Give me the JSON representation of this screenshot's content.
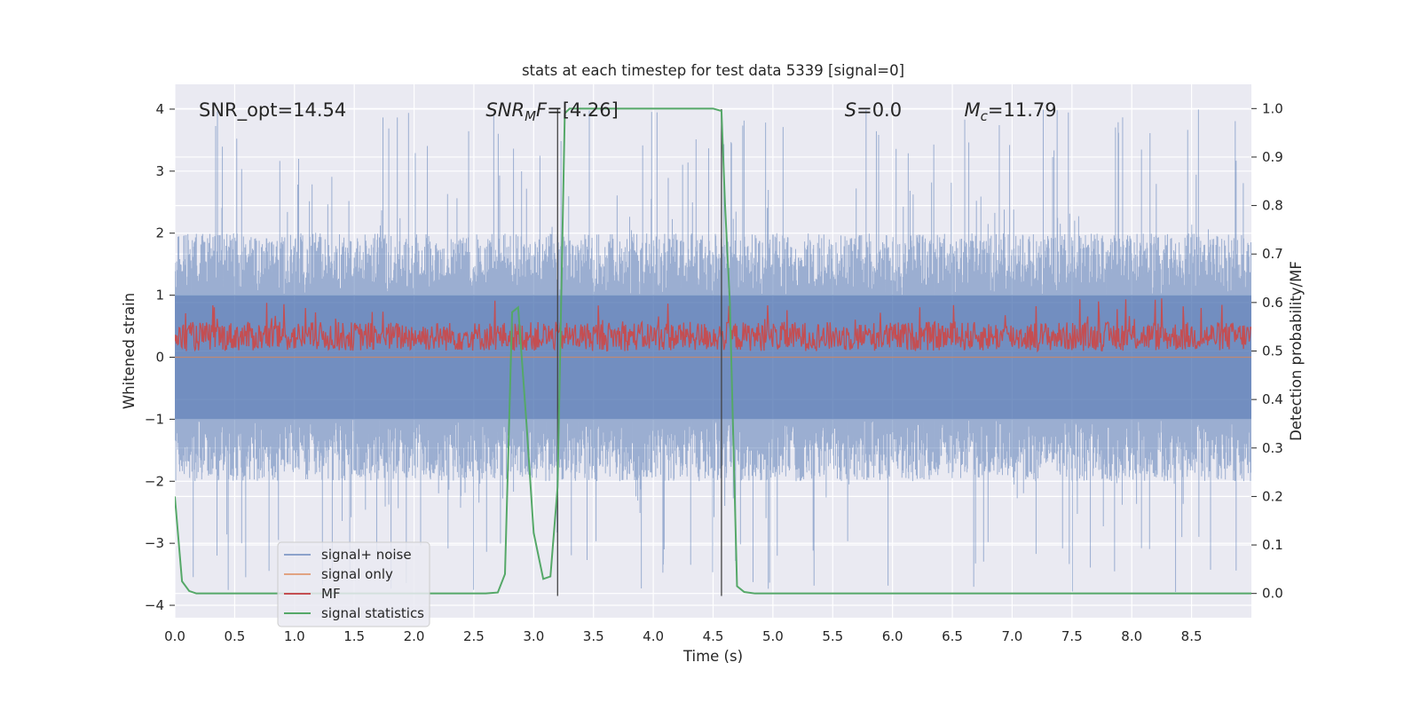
{
  "chart_data": {
    "type": "line",
    "title": "stats at each timestep for test data 5339 [signal=0]",
    "xlabel": "Time (s)",
    "ylabel": "Whitened strain",
    "y2label": "Detection probability/MF",
    "xlim": [
      0.0,
      9.0
    ],
    "ylim": [
      -4.2,
      4.4
    ],
    "y2lim": [
      -0.05,
      1.05
    ],
    "xticks": [
      0.0,
      0.5,
      1.0,
      1.5,
      2.0,
      2.5,
      3.0,
      3.5,
      4.0,
      4.5,
      5.0,
      5.5,
      6.0,
      6.5,
      7.0,
      7.5,
      8.0,
      8.5
    ],
    "xtick_labels": [
      "0.0",
      "0.5",
      "1.0",
      "1.5",
      "2.0",
      "2.5",
      "3.0",
      "3.5",
      "4.0",
      "4.5",
      "5.0",
      "5.5",
      "6.0",
      "6.5",
      "7.0",
      "7.5",
      "8.0",
      "8.5"
    ],
    "yticks": [
      -4,
      -3,
      -2,
      -1,
      0,
      1,
      2,
      3,
      4
    ],
    "ytick_labels": [
      "−4",
      "−3",
      "−2",
      "−1",
      "0",
      "1",
      "2",
      "3",
      "4"
    ],
    "y2ticks": [
      0.0,
      0.1,
      0.2,
      0.3,
      0.4,
      0.5,
      0.6,
      0.7,
      0.8,
      0.9,
      1.0
    ],
    "y2tick_labels": [
      "0.0",
      "0.1",
      "0.2",
      "0.3",
      "0.4",
      "0.5",
      "0.6",
      "0.7",
      "0.8",
      "0.9",
      "1.0"
    ],
    "grid": true,
    "legend_position": "lower-left",
    "annotations": [
      {
        "kind": "plain",
        "text": "SNR_opt=14.54",
        "x": 0.2
      },
      {
        "kind": "snrmf",
        "base": "SNR",
        "sub": "M",
        "rest": "F=[4.26]",
        "x": 2.6
      },
      {
        "kind": "italic",
        "base": "S",
        "rest": "=0.0",
        "x": 5.6
      },
      {
        "kind": "mc",
        "base": "M",
        "sub": "c",
        "rest": "=11.79",
        "x": 6.6
      }
    ],
    "annotation_y": 4.0,
    "vlines": [
      {
        "x": 3.2,
        "y": [
          -3.85,
          4.0
        ]
      },
      {
        "x": 4.57,
        "y": [
          -3.85,
          4.0
        ]
      }
    ],
    "series": [
      {
        "name": "signal+ noise",
        "color": "#4c72b0",
        "axis": "left",
        "band": {
          "dense_top": 1.0,
          "dense_bottom": -1.0,
          "typical_max": 2.0,
          "typical_min": -2.0,
          "peak_max": 4.0,
          "peak_min": -3.8
        }
      },
      {
        "name": "signal only",
        "color": "#dd8452",
        "axis": "left",
        "x": [
          0.0,
          9.0
        ],
        "y": [
          0.0,
          0.0
        ]
      },
      {
        "name": "MF",
        "color": "#c44e52",
        "axis": "right",
        "band": {
          "low": 0.5,
          "typical_high": 0.56,
          "peak_high": 0.61
        }
      },
      {
        "name": "signal statistics",
        "color": "#55a868",
        "axis": "right",
        "x": [
          0.0,
          0.06,
          0.12,
          0.18,
          0.3,
          2.6,
          2.7,
          2.76,
          2.82,
          2.87,
          2.94,
          3.0,
          3.08,
          3.14,
          3.2,
          3.26,
          3.3,
          3.4,
          4.5,
          4.57,
          4.6,
          4.64,
          4.7,
          4.76,
          4.85,
          9.0
        ],
        "y": [
          0.2,
          0.025,
          0.005,
          0.0,
          0.0,
          0.0,
          0.002,
          0.04,
          0.58,
          0.59,
          0.35,
          0.125,
          0.03,
          0.035,
          0.22,
          0.99,
          1.0,
          1.0,
          1.0,
          0.995,
          0.8,
          0.6,
          0.015,
          0.003,
          0.0,
          0.0
        ]
      }
    ]
  }
}
